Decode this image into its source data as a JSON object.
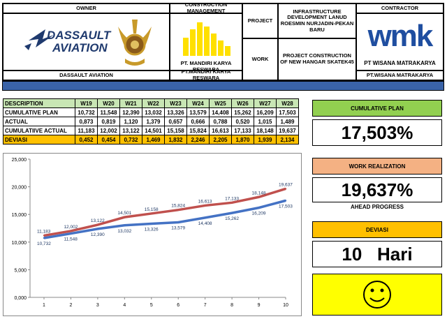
{
  "header": {
    "owner_title": "OWNER",
    "owner_name": "DASSAULT AVIATION",
    "owner_logo_line1": "DASSAULT",
    "owner_logo_line2": "AVIATION",
    "cm_title": "CONSTRUCTION MANAGEMENT",
    "cm_logo_text": "PT. MANDIRI KARYA RESWARA",
    "cm_name": "PT.MANDIRI KARYA RESWARA",
    "project_label": "PROJECT",
    "project_value": "INFRASTRUCTURE DEVELOPMENT LANUD ROESMIN NURJADIN-PEKAN BARU",
    "work_label": "WORK",
    "work_value": "PROJECT CONSTRUCTION OF NEW HANGAR SKATEK45",
    "contractor_title": "CONTRACTOR",
    "contractor_logo": "wmk",
    "contractor_logo_text": "PT WISANA MATRAKARYA",
    "contractor_name": "PT.WISANA MATRAKARYA"
  },
  "table": {
    "columns": [
      "DESCRIPTION",
      "W19",
      "W20",
      "W21",
      "W22",
      "W23",
      "W24",
      "W25",
      "W26",
      "W27",
      "W28"
    ],
    "rows": [
      {
        "label": "CUMULATIVE PLAN",
        "values": [
          "10,732",
          "11,548",
          "12,390",
          "13,032",
          "13,326",
          "13,579",
          "14,408",
          "15,262",
          "16,209",
          "17,503"
        ]
      },
      {
        "label": "ACTUAL",
        "values": [
          "0,873",
          "0,819",
          "1,120",
          "1,379",
          "0,657",
          "0,666",
          "0,788",
          "0,520",
          "1,015",
          "1,489"
        ]
      },
      {
        "label": "CUMULATIIVE ACTUAL",
        "values": [
          "11,183",
          "12,002",
          "13,122",
          "14,501",
          "15,158",
          "15,824",
          "16,613",
          "17,133",
          "18,148",
          "19,637"
        ]
      },
      {
        "label": "DEVIASI",
        "values": [
          "0,452",
          "0,454",
          "0,732",
          "1,469",
          "1,832",
          "2,246",
          "2,205",
          "1,870",
          "1,939",
          "2,134"
        ]
      }
    ]
  },
  "panels": {
    "plan_title": "CUMULATIVE PLAN",
    "plan_value": "17,503%",
    "real_title": "WORK REALIZATION",
    "real_value": "19,637%",
    "status": "AHEAD PROGRESS",
    "dev_title": "DEVIASI",
    "dev_value": "10   Hari",
    "face_icon": "smiley-face-icon"
  },
  "colors": {
    "green_panel": "#92d050",
    "orange_panel": "#f4b183",
    "yellow_panel": "#ffc000",
    "smiley_bg": "#ffff00",
    "header_band": "#3a63a8",
    "plan_line": "#4472c4",
    "actual_line": "#c0504d"
  },
  "chart_data": {
    "type": "line",
    "x": [
      1,
      2,
      3,
      4,
      5,
      6,
      7,
      8,
      9,
      10
    ],
    "ylim": [
      0,
      25
    ],
    "yticks": [
      "0,000",
      "5,000",
      "10,000",
      "15,000",
      "20,000",
      "25,000"
    ],
    "grid": false,
    "legend": "none",
    "series": [
      {
        "values": [
          10.732,
          11.548,
          12.39,
          13.032,
          13.326,
          13.579,
          14.408,
          15.262,
          16.209,
          17.503
        ],
        "labels": [
          "10,732",
          "11,548",
          "12,390",
          "13,032",
          "13,326",
          "13,579",
          "14,408",
          "15,262",
          "16,209",
          "17,503"
        ]
      },
      {
        "values": [
          11.183,
          12.002,
          13.122,
          14.501,
          15.158,
          15.824,
          16.613,
          17.133,
          18.148,
          19.637
        ],
        "labels": [
          "11,183",
          "12,002",
          "13,122",
          "14,501",
          "15,158",
          "15,824",
          "16,613",
          "17,133",
          "18,148",
          "19,637"
        ]
      }
    ]
  }
}
